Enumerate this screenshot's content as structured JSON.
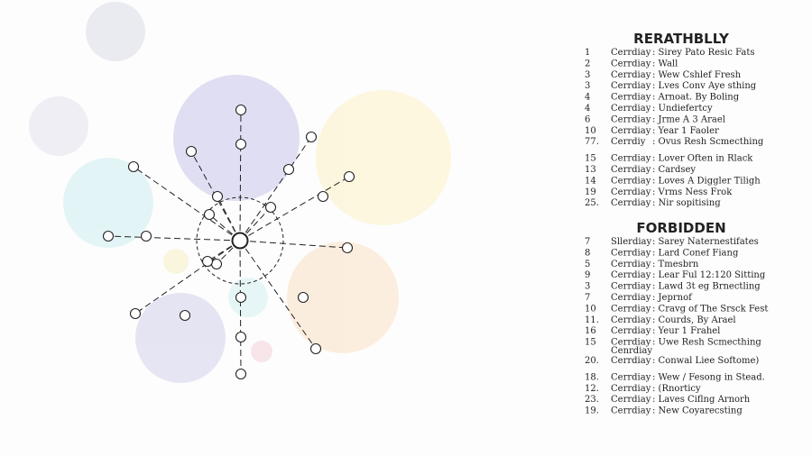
{
  "lists": [
    {
      "title": "RERATHBLLY",
      "groups": [
        [
          {
            "num": "1",
            "day": "Cerrdiay",
            "text": ": Sirey Pato Resic Fats"
          },
          {
            "num": "2",
            "day": "Cerrdiay",
            "text": ": Wall"
          },
          {
            "num": "3",
            "day": "Cerrdiay",
            "text": ": Wew Cshlef Fresh"
          },
          {
            "num": "3",
            "day": "Cerrdiay",
            "text": ": Lves Conv Aye sthing"
          },
          {
            "num": "4",
            "day": "Cerrdiay",
            "text": ": Arnoat. By Boling"
          },
          {
            "num": "4",
            "day": "Cerrdiay",
            "text": ": Undiefertcy"
          },
          {
            "num": "6",
            "day": "Cerrdiay",
            "text": ": Jrme A 3 Arael"
          },
          {
            "num": "10",
            "day": "Cerrdiay",
            "text": ": Year 1 Faoler"
          },
          {
            "num": "77.",
            "day": "Cerrdiy",
            "text": ": Ovus Resh Scmecthing"
          }
        ],
        [
          {
            "num": "15",
            "day": "Cerrdiay",
            "text": ": Lover Often in Rlack"
          },
          {
            "num": "13",
            "day": "Cerrdiay",
            "text": ": Cardsey"
          },
          {
            "num": "14",
            "day": "Cerrdiay",
            "text": ": Loves A Diggler Tiligh"
          },
          {
            "num": "19",
            "day": "Cerrdiay",
            "text": ": Vrms Ness Frok"
          },
          {
            "num": "25.",
            "day": "Cerrdiay",
            "text": ": Nir sopitising"
          }
        ]
      ]
    },
    {
      "title": "FORBIDDEN",
      "groups": [
        [
          {
            "num": "7",
            "day": "Sllerdiay",
            "text": ": Sarey Naternestifates"
          },
          {
            "num": "8",
            "day": "Cerrdiay",
            "text": ": Lard Conef Fiang"
          },
          {
            "num": "5",
            "day": "Cerrdiay",
            "text": ": Tmesbrn"
          },
          {
            "num": "9",
            "day": "Cerrdiay",
            "text": ": Lear Ful 12:120 Sitting"
          },
          {
            "num": "3",
            "day": "Cerrdiay",
            "text": ": Lawd 3t eg Brnectling"
          },
          {
            "num": "7",
            "day": "Cerrdiay",
            "text": ": Jeprnof"
          },
          {
            "num": "10",
            "day": "Cerrdiay",
            "text": ": Cravg of The Srsck Fest"
          },
          {
            "num": "11.",
            "day": "Cerrdiay",
            "text": ": Courds, By Arael"
          },
          {
            "num": "16",
            "day": "Cerrdiay",
            "text": ": Yeur 1 Frahel"
          },
          {
            "num": "15",
            "day": "Cerrdiay",
            "text": ": Uwe Resh Scmecthing"
          },
          {
            "note": "Cenrdiay"
          },
          {
            "num": "20.",
            "day": "Cerrdiay",
            "text": ": Conwal Liee Softome)"
          }
        ],
        [
          {
            "num": "18.",
            "day": "Cerrdiay",
            "text": ": Wew / Fesong in Stead."
          },
          {
            "num": "12.",
            "day": "Cerrdiay",
            "text": ": (Rnorticy"
          },
          {
            "num": "23.",
            "day": "Cerrdiay",
            "text": ": Laves Ciflng Arnorh"
          },
          {
            "num": "19.",
            "day": "Cerrdiay",
            "text": ": New Coyarecsting"
          }
        ]
      ]
    }
  ]
}
